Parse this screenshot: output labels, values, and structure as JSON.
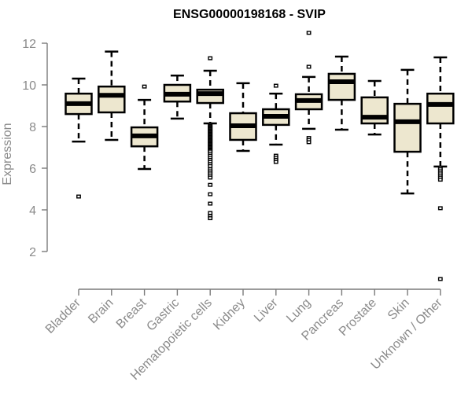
{
  "chart_data": {
    "type": "boxplot",
    "title": "ENSG00000198168 - SVIP",
    "xlabel": "",
    "ylabel": "Expression",
    "ylim": [
      0.5,
      12.3
    ],
    "yticks": [
      2,
      4,
      6,
      8,
      10,
      12
    ],
    "grid": false,
    "box_fill": "#ede7cf",
    "box_stroke": "#000000",
    "categories": [
      "Bladder",
      "Brain",
      "Breast",
      "Gastric",
      "Hematopoietic cells",
      "Kidney",
      "Liver",
      "Lung",
      "Pancreas",
      "Prostate",
      "Skin",
      "Unknown / Other"
    ],
    "boxes": [
      {
        "name": "Bladder",
        "whisker_low": 7.28,
        "q1": 8.6,
        "median": 9.1,
        "q3": 9.58,
        "whisker_high": 10.3,
        "outliers": [
          4.64
        ]
      },
      {
        "name": "Brain",
        "whisker_low": 7.36,
        "q1": 8.68,
        "median": 9.5,
        "q3": 9.92,
        "whisker_high": 11.6,
        "outliers": []
      },
      {
        "name": "Breast",
        "whisker_low": 5.96,
        "q1": 7.05,
        "median": 7.55,
        "q3": 7.96,
        "whisker_high": 9.28,
        "outliers": [
          9.92
        ]
      },
      {
        "name": "Gastric",
        "whisker_low": 8.38,
        "q1": 9.2,
        "median": 9.55,
        "q3": 10.0,
        "whisker_high": 10.45,
        "outliers": []
      },
      {
        "name": "Hematopoietic cells",
        "whisker_low": 8.15,
        "q1": 9.13,
        "median": 9.58,
        "q3": 9.77,
        "whisker_high": 10.68,
        "outliers": [
          11.28,
          8.1,
          8.05,
          8.0,
          7.95,
          7.9,
          7.85,
          7.8,
          7.75,
          7.7,
          7.65,
          7.6,
          7.55,
          7.5,
          7.45,
          7.4,
          7.35,
          7.3,
          7.25,
          7.2,
          7.15,
          7.1,
          7.05,
          7.0,
          6.95,
          6.9,
          6.85,
          6.8,
          6.7,
          6.6,
          6.5,
          6.4,
          6.3,
          6.2,
          6.1,
          5.95,
          5.85,
          5.75,
          5.65,
          5.55,
          5.2,
          4.75,
          4.3,
          3.85,
          3.7,
          3.6
        ]
      },
      {
        "name": "Kidney",
        "whisker_low": 6.83,
        "q1": 7.36,
        "median": 8.04,
        "q3": 8.64,
        "whisker_high": 10.08,
        "outliers": []
      },
      {
        "name": "Liver",
        "whisker_low": 7.13,
        "q1": 8.08,
        "median": 8.49,
        "q3": 8.83,
        "whisker_high": 9.58,
        "outliers": [
          9.96,
          6.6,
          6.5,
          6.4,
          6.3
        ]
      },
      {
        "name": "Lung",
        "whisker_low": 7.89,
        "q1": 8.83,
        "median": 9.25,
        "q3": 9.55,
        "whisker_high": 10.38,
        "outliers": [
          12.5,
          10.87,
          7.45,
          7.35,
          7.25
        ]
      },
      {
        "name": "Pancreas",
        "whisker_low": 7.85,
        "q1": 9.28,
        "median": 10.15,
        "q3": 10.53,
        "whisker_high": 11.36,
        "outliers": []
      },
      {
        "name": "Prostate",
        "whisker_low": 7.62,
        "q1": 8.15,
        "median": 8.45,
        "q3": 9.4,
        "whisker_high": 10.19,
        "outliers": []
      },
      {
        "name": "Skin",
        "whisker_low": 4.79,
        "q1": 6.79,
        "median": 8.23,
        "q3": 9.09,
        "whisker_high": 10.72,
        "outliers": []
      },
      {
        "name": "Unknown / Other",
        "whisker_low": 6.08,
        "q1": 8.15,
        "median": 9.06,
        "q3": 9.58,
        "whisker_high": 11.32,
        "outliers": [
          6.02,
          5.95,
          5.85,
          5.75,
          5.65,
          5.55,
          5.45,
          4.08,
          0.68
        ]
      }
    ]
  }
}
